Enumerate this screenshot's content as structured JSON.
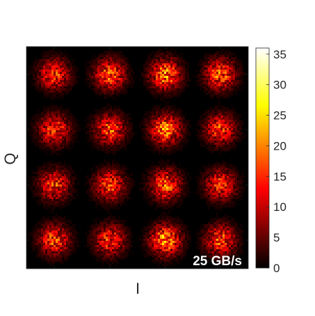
{
  "chart_data": {
    "type": "heatmap",
    "title": "",
    "xlabel": "I",
    "ylabel": "Q",
    "annotation": "25 GB/s",
    "x_ticks": [
      "",
      "",
      "",
      ""
    ],
    "y_ticks": [
      "",
      "",
      "",
      ""
    ],
    "colorbar": {
      "colormap": "hot",
      "range": [
        0,
        36
      ],
      "ticks": [
        "0",
        "5",
        "10",
        "15",
        "20",
        "25",
        "30",
        "35"
      ],
      "tick_values": [
        0,
        5,
        10,
        15,
        20,
        25,
        30,
        35
      ]
    },
    "grid": false,
    "constellation": "16-QAM",
    "clusters": [
      {
        "row": 1,
        "col": 1,
        "peak": 26
      },
      {
        "row": 1,
        "col": 2,
        "peak": 30
      },
      {
        "row": 1,
        "col": 3,
        "peak": 34
      },
      {
        "row": 1,
        "col": 4,
        "peak": 30
      },
      {
        "row": 2,
        "col": 1,
        "peak": 28
      },
      {
        "row": 2,
        "col": 2,
        "peak": 28
      },
      {
        "row": 2,
        "col": 3,
        "peak": 32
      },
      {
        "row": 2,
        "col": 4,
        "peak": 26
      },
      {
        "row": 3,
        "col": 1,
        "peak": 26
      },
      {
        "row": 3,
        "col": 2,
        "peak": 27
      },
      {
        "row": 3,
        "col": 3,
        "peak": 30
      },
      {
        "row": 3,
        "col": 4,
        "peak": 26
      },
      {
        "row": 4,
        "col": 1,
        "peak": 27
      },
      {
        "row": 4,
        "col": 2,
        "peak": 26
      },
      {
        "row": 4,
        "col": 3,
        "peak": 36
      },
      {
        "row": 4,
        "col": 4,
        "peak": 28
      }
    ]
  }
}
